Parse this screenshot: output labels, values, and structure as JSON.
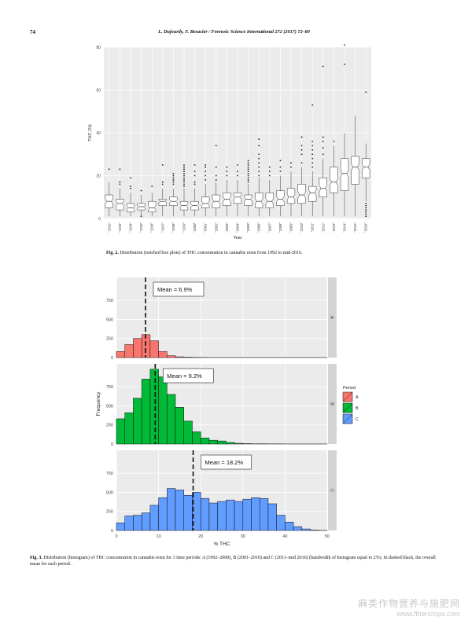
{
  "header": {
    "page_number": "74",
    "journal": "L. Dujourdy, F. Besacier / Forensic Science International 272 (2017) 72–80"
  },
  "figure2": {
    "caption_label": "Fig. 2.",
    "caption_text": " Distribution (notched box plots) of THC concentration in cannabis resin from 1992 to mid-2016.",
    "chart_data": {
      "type": "boxplot",
      "xlabel": "Year",
      "ylabel": "THC (%)",
      "ylim": [
        0,
        80
      ],
      "yticks": [
        0,
        20,
        40,
        60,
        80
      ],
      "categories": [
        "1992",
        "1993",
        "1994",
        "1995",
        "1996",
        "1997",
        "1998",
        "1999",
        "2000",
        "2001",
        "2002",
        "2003",
        "2004",
        "2005",
        "2006",
        "2007",
        "2008",
        "2009",
        "2010",
        "2011",
        "2012",
        "2013",
        "2014",
        "2015",
        "2016"
      ],
      "boxes": [
        {
          "min": 1,
          "q1": 5,
          "median": 8,
          "q3": 11,
          "max": 17,
          "outliers": [
            23
          ]
        },
        {
          "min": 1,
          "q1": 4,
          "median": 7,
          "q3": 9,
          "max": 14,
          "outliers": [
            16,
            17,
            23
          ]
        },
        {
          "min": 1,
          "q1": 3,
          "median": 5,
          "q3": 7,
          "max": 12,
          "outliers": [
            14,
            15,
            19
          ]
        },
        {
          "min": 1,
          "q1": 4,
          "median": 5.5,
          "q3": 7,
          "max": 11,
          "outliers": [
            1,
            13
          ]
        },
        {
          "min": 1,
          "q1": 3,
          "median": 5,
          "q3": 8,
          "max": 12,
          "outliers": [
            15
          ]
        },
        {
          "min": 1,
          "q1": 6,
          "median": 8,
          "q3": 9,
          "max": 14,
          "outliers": [
            16,
            17,
            25
          ]
        },
        {
          "min": 1,
          "q1": 6,
          "median": 8,
          "q3": 10,
          "max": 14,
          "outliers": [
            16,
            17,
            18,
            19,
            20,
            21
          ]
        },
        {
          "min": 1,
          "q1": 4,
          "median": 6,
          "q3": 8,
          "max": 14,
          "outliers": [
            15,
            16,
            17,
            18,
            19,
            20,
            21,
            22,
            23,
            24,
            25
          ]
        },
        {
          "min": 1,
          "q1": 4,
          "median": 6,
          "q3": 8,
          "max": 14,
          "outliers": [
            16,
            17,
            20,
            22,
            25
          ]
        },
        {
          "min": 1,
          "q1": 5,
          "median": 7,
          "q3": 10,
          "max": 16,
          "outliers": [
            18,
            20,
            22,
            24,
            25
          ]
        },
        {
          "min": 1,
          "q1": 5,
          "median": 8,
          "q3": 11,
          "max": 17,
          "outliers": [
            18,
            20,
            24,
            34
          ]
        },
        {
          "min": 1,
          "q1": 6,
          "median": 9,
          "q3": 12,
          "max": 18,
          "outliers": [
            20,
            22,
            24
          ]
        },
        {
          "min": 1,
          "q1": 7,
          "median": 10,
          "q3": 12,
          "max": 18,
          "outliers": [
            20,
            22,
            25
          ]
        },
        {
          "min": 1,
          "q1": 6,
          "median": 9,
          "q3": 11,
          "max": 16,
          "outliers": [
            17,
            18,
            19,
            20,
            21,
            22,
            23,
            24,
            25,
            26,
            27
          ]
        },
        {
          "min": 1,
          "q1": 5,
          "median": 8,
          "q3": 12,
          "max": 19,
          "outliers": [
            20,
            22,
            24,
            26,
            28,
            30,
            34,
            37
          ]
        },
        {
          "min": 1,
          "q1": 5,
          "median": 8,
          "q3": 12,
          "max": 18,
          "outliers": [
            20,
            22,
            24
          ]
        },
        {
          "min": 1,
          "q1": 6,
          "median": 9,
          "q3": 13,
          "max": 20,
          "outliers": [
            22,
            24,
            27
          ]
        },
        {
          "min": 1,
          "q1": 7,
          "median": 10,
          "q3": 14,
          "max": 22,
          "outliers": [
            24,
            26
          ]
        },
        {
          "min": 1,
          "q1": 7,
          "median": 11,
          "q3": 16,
          "max": 24,
          "outliers": [
            26,
            30,
            32,
            34,
            38
          ]
        },
        {
          "min": 1,
          "q1": 8,
          "median": 12,
          "q3": 15,
          "max": 22,
          "outliers": [
            24,
            26,
            28,
            30,
            32,
            34,
            36,
            53
          ]
        },
        {
          "min": 1,
          "q1": 10,
          "median": 14,
          "q3": 19,
          "max": 28,
          "outliers": [
            30,
            33,
            36,
            38,
            71
          ]
        },
        {
          "min": 1,
          "q1": 12,
          "median": 17,
          "q3": 24,
          "max": 34,
          "outliers": [
            36
          ]
        },
        {
          "min": 1,
          "q1": 13,
          "median": 21,
          "q3": 28,
          "max": 40,
          "outliers": [
            72,
            81
          ]
        },
        {
          "min": 1,
          "q1": 16,
          "median": 24,
          "q3": 29,
          "max": 48,
          "outliers": []
        },
        {
          "min": 8,
          "q1": 19,
          "median": 24,
          "q3": 28,
          "max": 35,
          "outliers": [
            1,
            2,
            3,
            4,
            5,
            6,
            7,
            59
          ]
        }
      ]
    }
  },
  "figure3": {
    "caption_label": "Fig. 3.",
    "caption_text": " Distribution (histogram) of THC concentration in cannabis resin for 3 time periods: A (1992–2000), B (2001–2010) and C (2011–mid 2016) (bandwidth of histogram equal to 2%). In dashed black, the overall mean for each period.",
    "chart_data": {
      "type": "histogram",
      "xlabel": "% THC",
      "ylabel": "Frequency",
      "xlim": [
        0,
        50
      ],
      "xticks": [
        0,
        10,
        20,
        30,
        40,
        50
      ],
      "yticks": [
        0,
        250,
        500,
        750
      ],
      "bin_width": 2,
      "legend": {
        "title": "Period",
        "position": "right"
      },
      "panels": [
        {
          "name": "A",
          "color": "#F8766D",
          "mean": 6.9,
          "mean_label": "Mean = 6.9%",
          "counts": [
            80,
            170,
            250,
            300,
            220,
            80,
            25,
            10,
            5,
            3,
            2,
            1,
            1,
            1,
            1,
            1,
            1,
            1,
            1,
            1,
            1,
            1,
            1,
            1,
            1
          ]
        },
        {
          "name": "B",
          "color": "#00BA38",
          "mean": 9.2,
          "mean_label": "Mean = 9.2%",
          "counts": [
            330,
            410,
            600,
            850,
            980,
            880,
            650,
            480,
            300,
            160,
            80,
            50,
            40,
            20,
            10,
            5,
            3,
            3,
            2,
            2,
            1,
            1,
            1,
            1,
            1
          ]
        },
        {
          "name": "C",
          "color": "#619CFF",
          "mean": 18.2,
          "mean_label": "Mean = 18.2%",
          "counts": [
            100,
            190,
            200,
            230,
            330,
            430,
            550,
            530,
            460,
            500,
            420,
            360,
            380,
            400,
            380,
            410,
            430,
            420,
            350,
            200,
            110,
            50,
            20,
            5,
            2
          ]
        }
      ]
    }
  },
  "watermark": {
    "line1": "麻类作物营养与施肥网",
    "line2": "www.fibercrops.com"
  }
}
